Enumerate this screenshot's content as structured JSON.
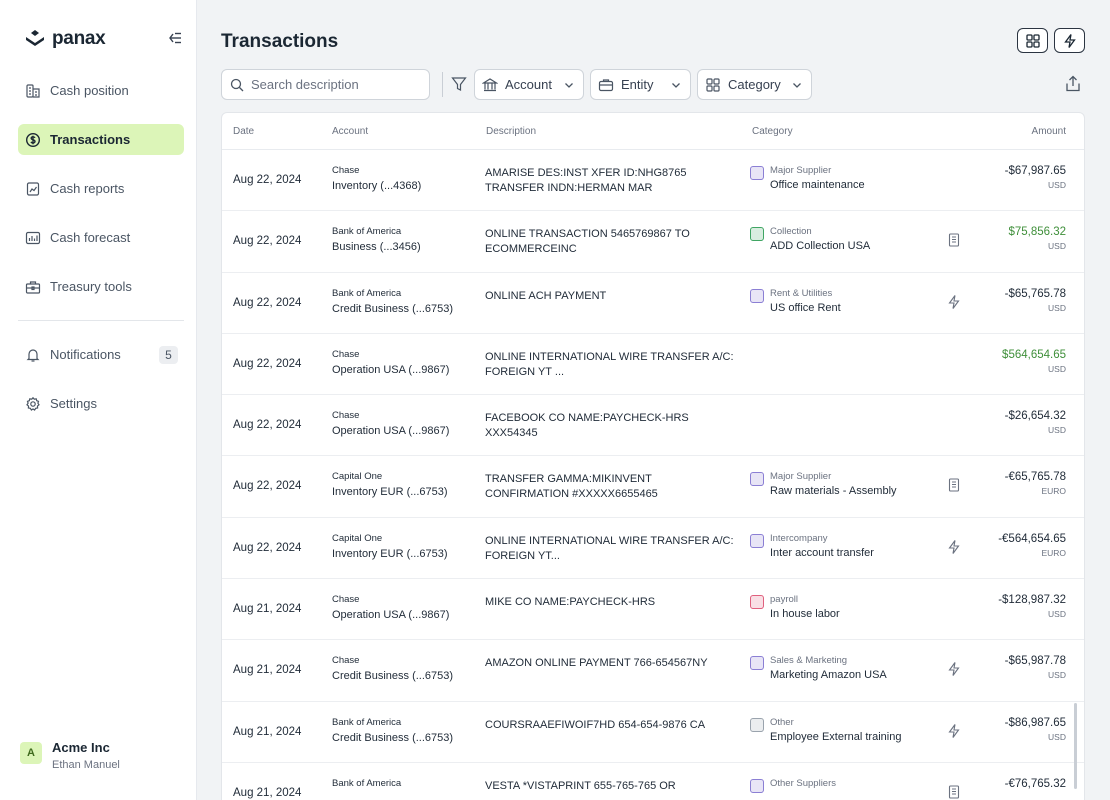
{
  "brand": {
    "name": "panax"
  },
  "sidebar": {
    "items": [
      {
        "label": "Cash position",
        "icon": "cash-position-icon"
      },
      {
        "label": "Transactions",
        "icon": "dollar-circle-icon",
        "active": true
      },
      {
        "label": "Cash reports",
        "icon": "report-chart-icon"
      },
      {
        "label": "Cash forecast",
        "icon": "forecast-chart-icon"
      },
      {
        "label": "Treasury tools",
        "icon": "toolbox-icon"
      }
    ],
    "secondary": [
      {
        "label": "Notifications",
        "icon": "bell-icon",
        "badge": "5"
      },
      {
        "label": "Settings",
        "icon": "gear-icon"
      }
    ]
  },
  "account": {
    "initial": "A",
    "company": "Acme Inc",
    "user": "Ethan Manuel"
  },
  "header": {
    "title": "Transactions"
  },
  "toolbar": {
    "search_placeholder": "Search description",
    "filters": [
      "Account",
      "Entity",
      "Category"
    ]
  },
  "table": {
    "columns": {
      "date": "Date",
      "account": "Account",
      "description": "Description",
      "category": "Category",
      "amount": "Amount"
    },
    "rows": [
      {
        "date": "Aug 22, 2024",
        "bank": "Chase",
        "account": "Inventory (...4368)",
        "desc1": "AMARISE DES:INST XFER ID:NHG8765",
        "desc2": "TRANSFER INDN:HERMAN MAR",
        "cat_type": "Major Supplier",
        "cat_name": "Office maintenance",
        "cat_color": "#8b7fd4",
        "flag": "",
        "amount": "-$67,987.65",
        "currency": "USD",
        "positive": false
      },
      {
        "date": "Aug 22, 2024",
        "bank": "Bank of America",
        "account": "Business (...3456)",
        "desc1": "ONLINE TRANSACTION 5465769867 TO",
        "desc2": "ECOMMERCEINC",
        "cat_type": "Collection",
        "cat_name": "ADD Collection USA",
        "cat_color": "#3fa563",
        "flag": "document",
        "amount": "$75,856.32",
        "currency": "USD",
        "positive": true
      },
      {
        "date": "Aug 22, 2024",
        "bank": "Bank of America",
        "account": "Credit Business (...6753)",
        "desc1": "ONLINE ACH PAYMENT",
        "desc2": "",
        "cat_type": "Rent & Utilities",
        "cat_name": "US office Rent",
        "cat_color": "#8b7fd4",
        "flag": "bolt",
        "amount": "-$65,765.78",
        "currency": "USD",
        "positive": false
      },
      {
        "date": "Aug 22, 2024",
        "bank": "Chase",
        "account": "Operation USA  (...9867)",
        "desc1": "ONLINE INTERNATIONAL WIRE TRANSFER A/C:",
        "desc2": "FOREIGN  YT ...",
        "cat_type": "",
        "cat_name": "",
        "cat_color": "",
        "flag": "",
        "amount": "$564,654.65",
        "currency": "USD",
        "positive": true
      },
      {
        "date": "Aug 22, 2024",
        "bank": "Chase",
        "account": "Operation USA  (...9867)",
        "desc1": "FACEBOOK CO NAME:PAYCHECK-HRS",
        "desc2": "XXX54345",
        "cat_type": "",
        "cat_name": "",
        "cat_color": "",
        "flag": "",
        "amount": "-$26,654.32",
        "currency": "USD",
        "positive": false
      },
      {
        "date": "Aug 22, 2024",
        "bank": "Capital One",
        "account": "Inventory EUR (...6753)",
        "desc1": "TRANSFER GAMMA:MIKINVENT",
        "desc2": "CONFIRMATION #XXXXX6655465",
        "cat_type": "Major Supplier",
        "cat_name": "Raw materials - Assembly",
        "cat_color": "#8b7fd4",
        "flag": "document",
        "amount": "-€65,765.78",
        "currency": "EURO",
        "positive": false
      },
      {
        "date": "Aug 22, 2024",
        "bank": "Capital One",
        "account": "Inventory EUR (...6753)",
        "desc1": "ONLINE INTERNATIONAL WIRE TRANSFER A/C:",
        "desc2": "FOREIGN  YT...",
        "cat_type": "Intercompany",
        "cat_name": "Inter account transfer",
        "cat_color": "#8b7fd4",
        "flag": "bolt",
        "amount": "-€564,654.65",
        "currency": "EURO",
        "positive": false
      },
      {
        "date": "Aug 21, 2024",
        "bank": "Chase",
        "account": "Operation USA  (...9867)",
        "desc1": "MIKE CO NAME:PAYCHECK-HRS",
        "desc2": "",
        "cat_type": "payroll",
        "cat_name": "In house labor",
        "cat_color": "#e0607e",
        "flag": "",
        "amount": "-$128,987.32",
        "currency": "USD",
        "positive": false
      },
      {
        "date": "Aug 21, 2024",
        "bank": "Chase",
        "account": "Credit Business (...6753)",
        "desc1": "AMAZON ONLINE PAYMENT 766-654567NY",
        "desc2": "",
        "cat_type": "Sales & Marketing",
        "cat_name": "Marketing Amazon USA",
        "cat_color": "#8b7fd4",
        "flag": "bolt",
        "amount": "-$65,987.78",
        "currency": "USD",
        "positive": false
      },
      {
        "date": "Aug 21, 2024",
        "bank": "Bank of America",
        "account": "Credit Business (...6753)",
        "desc1": "COURSRAAEFIWOIF7HD 654-654-9876 CA",
        "desc2": "",
        "cat_type": "Other",
        "cat_name": "Employee External training",
        "cat_color": "#9aa3ad",
        "flag": "bolt",
        "amount": "-$86,987.65",
        "currency": "USD",
        "positive": false
      },
      {
        "date": "Aug 21, 2024",
        "bank": "Bank of America",
        "account": "",
        "desc1": "VESTA *VISTAPRINT 655-765-765 OR",
        "desc2": "",
        "cat_type": "Other Suppliers",
        "cat_name": "",
        "cat_color": "#8b7fd4",
        "flag": "document",
        "amount": "-€76,765.32",
        "currency": "",
        "positive": false
      }
    ]
  }
}
